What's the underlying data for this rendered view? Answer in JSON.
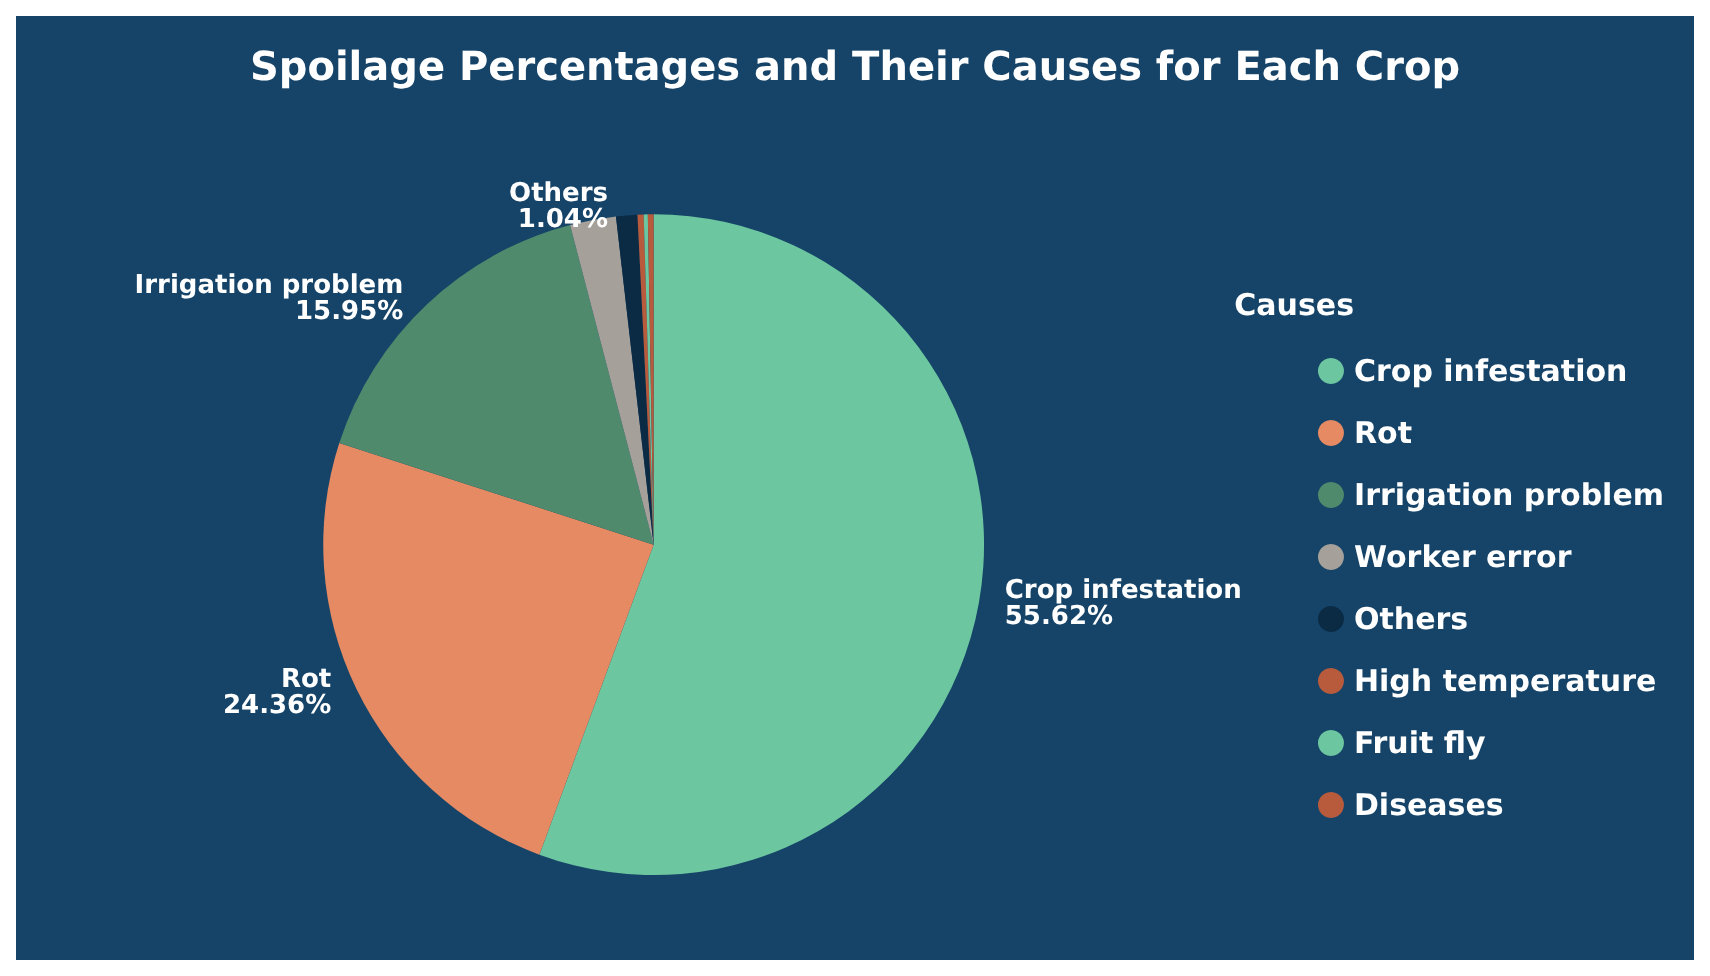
{
  "chart_data": {
    "type": "pie",
    "title": "Spoilage Percentages and Their Causes for Each Crop",
    "legend_title": "Causes",
    "legend": "right",
    "categories": [
      "Crop infestation",
      "Rot",
      "Irrigation problem",
      "Worker error",
      "Others",
      "High temperature",
      "Fruit fly",
      "Diseases"
    ],
    "values": [
      55.62,
      24.36,
      15.95,
      2.25,
      1.04,
      0.3,
      0.2,
      0.28
    ],
    "value_labels": [
      "55.62%",
      "24.36%",
      "15.95%",
      null,
      "1.04%",
      null,
      null,
      null
    ],
    "colors": [
      "#6cc7a0",
      "#e58a62",
      "#4f8a6c",
      "#a5a09a",
      "#0b2a44",
      "#b85a3c",
      "#6cc7a0",
      "#b85a3c"
    ]
  }
}
